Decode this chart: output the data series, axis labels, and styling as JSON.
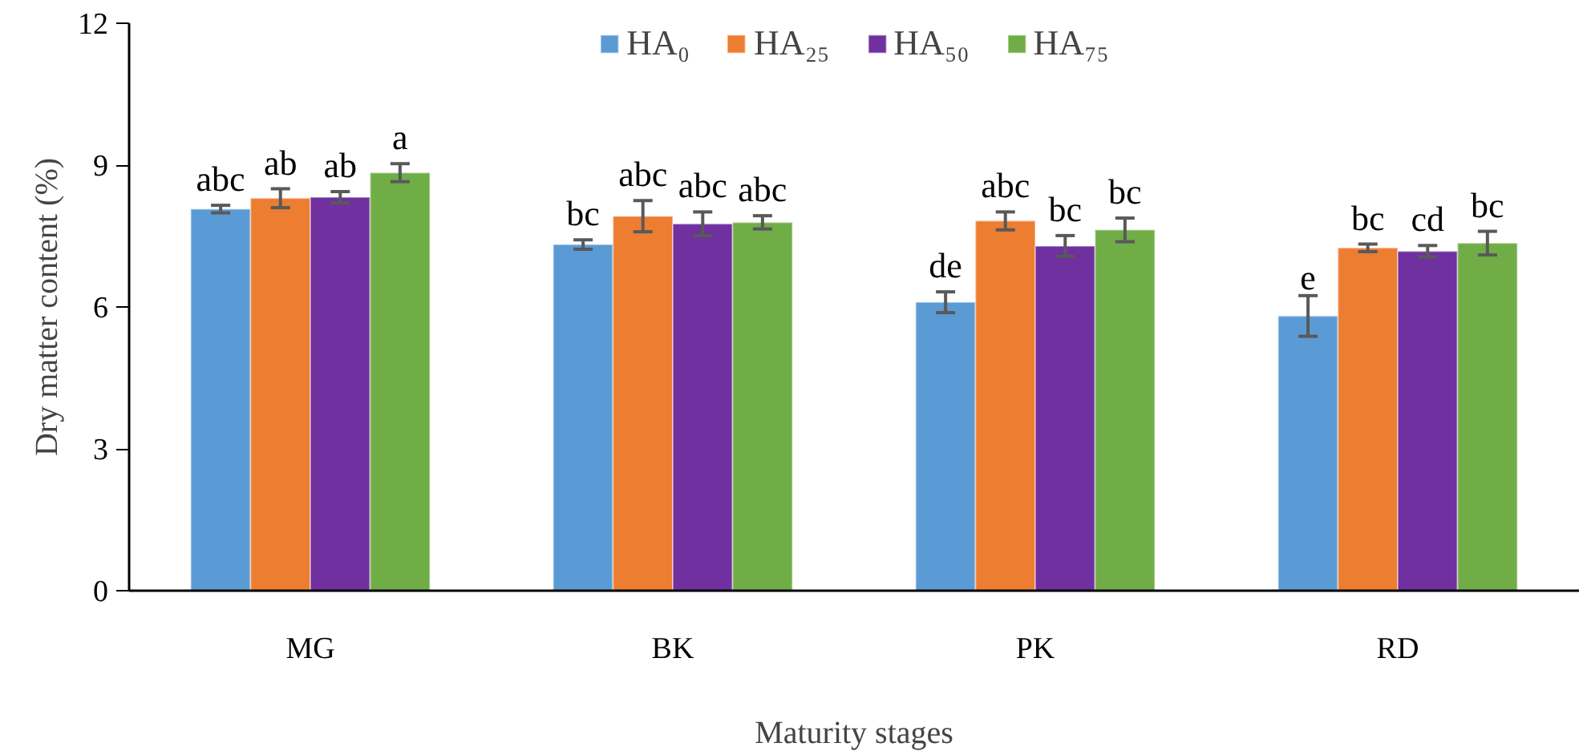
{
  "chart_data": {
    "type": "bar",
    "xlabel": "Maturity stages",
    "ylabel": "Dry matter content (%)",
    "categories": [
      "MG",
      "BK",
      "PK",
      "RD"
    ],
    "ylim": [
      0,
      12
    ],
    "yticks": [
      0,
      3,
      6,
      9,
      12
    ],
    "grid": false,
    "legend": "top",
    "series": [
      {
        "name": "HA₀",
        "color": "#5b9bd5",
        "values": [
          8.07,
          7.32,
          6.1,
          5.81
        ],
        "errors": [
          0.08,
          0.1,
          0.22,
          0.43
        ],
        "value_labels": [
          "abc",
          "bc",
          "de",
          "e"
        ]
      },
      {
        "name": "HA₂₅",
        "color": "#ed7d31",
        "values": [
          8.3,
          7.92,
          7.82,
          7.25
        ],
        "errors": [
          0.2,
          0.33,
          0.19,
          0.08
        ],
        "value_labels": [
          "ab",
          "abc",
          "abc",
          "bc"
        ]
      },
      {
        "name": "HA₅₀",
        "color": "#7030a0",
        "values": [
          8.32,
          7.76,
          7.29,
          7.18
        ],
        "errors": [
          0.12,
          0.25,
          0.22,
          0.12
        ],
        "value_labels": [
          "ab",
          "abc",
          "bc",
          "cd"
        ]
      },
      {
        "name": "HA₇₅",
        "color": "#70ad47",
        "values": [
          8.84,
          7.79,
          7.63,
          7.35
        ],
        "errors": [
          0.19,
          0.14,
          0.25,
          0.25
        ],
        "value_labels": [
          "a",
          "abc",
          "bc",
          "bc"
        ]
      }
    ]
  }
}
